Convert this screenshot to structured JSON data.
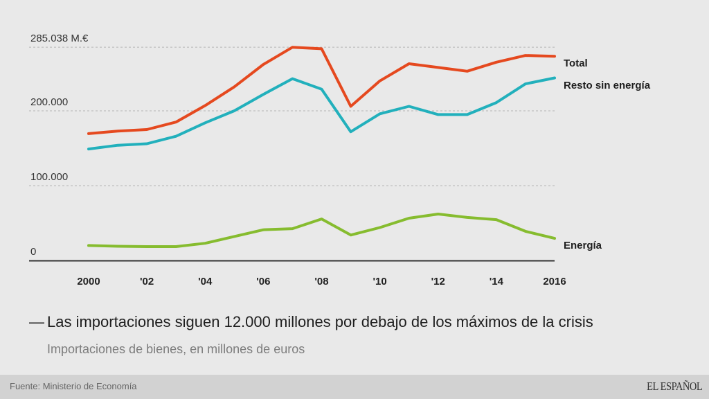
{
  "headline": {
    "dash": "—",
    "text": "Las importaciones siguen 12.000 millones por debajo de los máximos de la crisis"
  },
  "subtitle": "Importaciones de bienes, en millones de euros",
  "footer": {
    "source": "Fuente: Ministerio de Economía",
    "brand": "EL ESPAÑOL"
  },
  "colors": {
    "total": "#e5491f",
    "resto": "#22b0bc",
    "energia": "#86bc2f",
    "grid": "#b5b5b5",
    "axis": "#333333"
  },
  "chart_data": {
    "type": "line",
    "title": "Las importaciones siguen 12.000 millones por debajo de los máximos de la crisis",
    "subtitle": "Importaciones de bienes, en millones de euros",
    "xlabel": "",
    "ylabel": "",
    "x": [
      2000,
      2001,
      2002,
      2003,
      2004,
      2005,
      2006,
      2007,
      2008,
      2009,
      2010,
      2011,
      2012,
      2013,
      2014,
      2015,
      2016
    ],
    "x_tick_values": [
      2000,
      2002,
      2004,
      2006,
      2008,
      2010,
      2012,
      2014,
      2016
    ],
    "x_tick_labels": [
      "2000",
      "'02",
      "'04",
      "'06",
      "'08",
      "'10",
      "'12",
      "'14",
      "2016"
    ],
    "y_tick_values": [
      0,
      100000,
      200000,
      285038
    ],
    "y_tick_labels": [
      "0",
      "100.000",
      "200.000",
      "285.038 M.€"
    ],
    "ylim": [
      0,
      285038
    ],
    "grid": true,
    "legend": "inline-right",
    "series": [
      {
        "name": "Total",
        "color_key": "total",
        "values": [
          169500,
          173000,
          175000,
          185000,
          207000,
          232000,
          262000,
          285038,
          283000,
          206000,
          240000,
          263000,
          258000,
          253000,
          265000,
          274000,
          273000
        ]
      },
      {
        "name": "Resto sin energía",
        "color_key": "resto",
        "values": [
          149000,
          154000,
          156000,
          166000,
          184000,
          200000,
          222000,
          243000,
          229000,
          172000,
          196000,
          206000,
          195000,
          195000,
          211000,
          236000,
          244000
        ]
      },
      {
        "name": "Energía",
        "color_key": "energia",
        "values": [
          20000,
          19000,
          18500,
          18500,
          23000,
          32000,
          41000,
          42500,
          55500,
          34000,
          44000,
          56500,
          62000,
          57500,
          54500,
          39000,
          29500
        ]
      }
    ]
  }
}
